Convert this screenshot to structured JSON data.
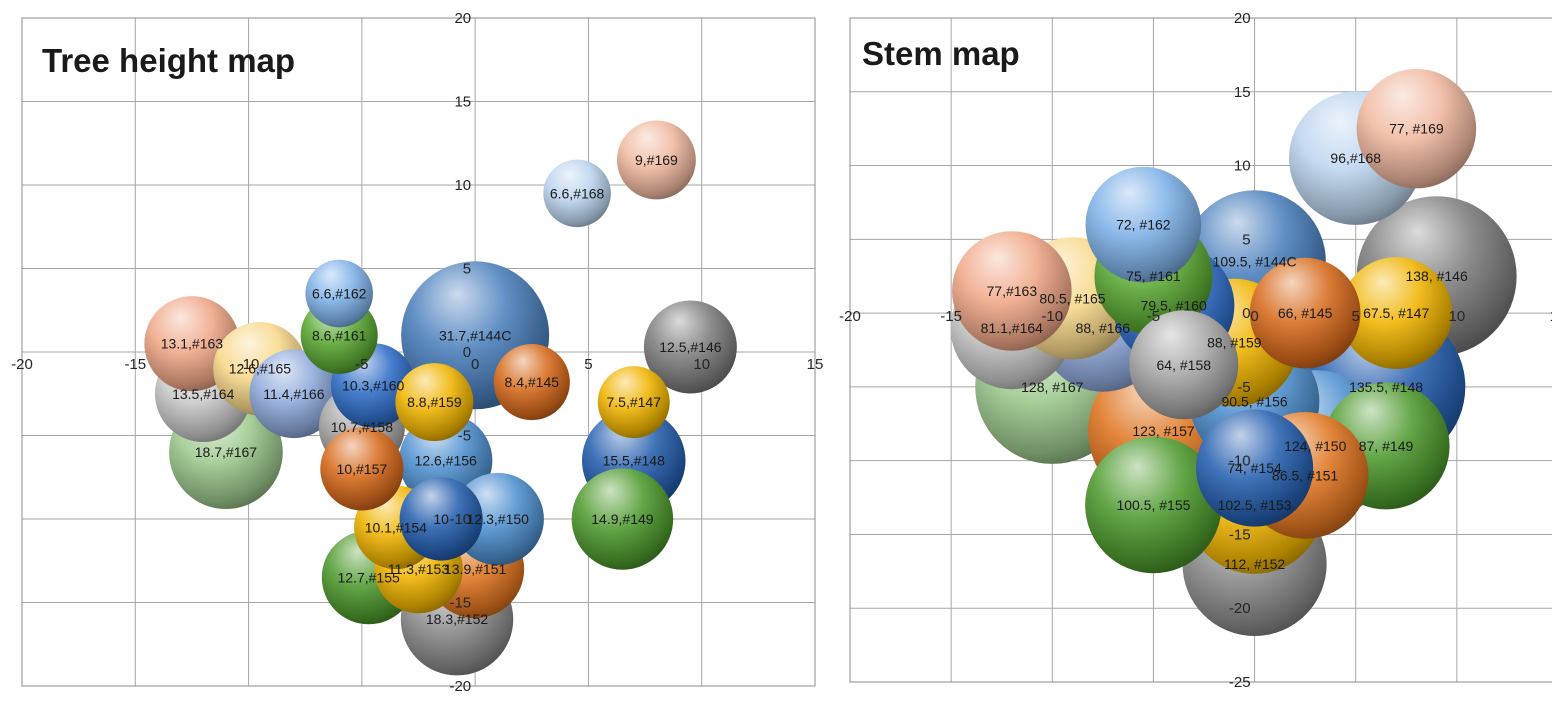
{
  "chart_data": [
    {
      "type": "bubble",
      "title": "Tree height map",
      "xlim": [
        -20,
        15
      ],
      "ylim": [
        -20,
        20
      ],
      "xticks": [
        -20,
        -15,
        -10,
        -5,
        0,
        5,
        10,
        15
      ],
      "yticks": [
        -20,
        -15,
        -10,
        -5,
        0,
        5,
        10,
        15,
        20
      ],
      "grid": true,
      "points": [
        {
          "label": "31.7,#144C",
          "x": 0,
          "y": 1,
          "size": 31.7,
          "color": "#4a80bd"
        },
        {
          "label": "10.3,#160",
          "x": -4.5,
          "y": -2,
          "size": 10.3,
          "color": "#2f6ec8"
        },
        {
          "label": "8.8,#159",
          "x": -1.8,
          "y": -3,
          "size": 8.8,
          "color": "#f0b400"
        },
        {
          "label": "8.4,#145",
          "x": 2.5,
          "y": -1.8,
          "size": 8.4,
          "color": "#d76a1c"
        },
        {
          "label": "12.6,#156",
          "x": -1.3,
          "y": -6.5,
          "size": 12.6,
          "color": "#4f91d0"
        },
        {
          "label": "10.7,#158",
          "x": -5,
          "y": -4.5,
          "size": 10.7,
          "color": "#a6a6a6"
        },
        {
          "label": "10,#157",
          "x": -5,
          "y": -7,
          "size": 10,
          "color": "#d76a1c"
        },
        {
          "label": "12.3,#150",
          "x": 1,
          "y": -10,
          "size": 12.3,
          "color": "#4f91d0"
        },
        {
          "label": "10",
          "x": -1.5,
          "y": -10,
          "size": 10,
          "color": "#2660b0"
        },
        {
          "label": "10.1,#154",
          "x": -3.5,
          "y": -10.5,
          "size": 10.1,
          "color": "#f0b400"
        },
        {
          "label": "13.9,#151",
          "x": 0,
          "y": -13,
          "size": 13.9,
          "color": "#e07520"
        },
        {
          "label": "11.3,#153",
          "x": -2.5,
          "y": -13,
          "size": 11.3,
          "color": "#f0b400"
        },
        {
          "label": "12.7,#155",
          "x": -4.7,
          "y": -13.5,
          "size": 12.7,
          "color": "#4e9a2e"
        },
        {
          "label": "18.3,#152",
          "x": -0.8,
          "y": -16,
          "size": 18.3,
          "color": "#8c8c8c"
        },
        {
          "label": "6.6,#168",
          "x": 4.5,
          "y": 9.5,
          "size": 6.6,
          "color": "#bcd4ef"
        },
        {
          "label": "9,#169",
          "x": 8,
          "y": 11.5,
          "size": 9,
          "color": "#f0b8a0"
        },
        {
          "label": "12.5,#146",
          "x": 9.5,
          "y": 0.3,
          "size": 12.5,
          "color": "#7f7f7f"
        },
        {
          "label": "7.5,#147",
          "x": 7,
          "y": -3,
          "size": 7.5,
          "color": "#f0b400"
        },
        {
          "label": "15.5,#148",
          "x": 7,
          "y": -6.5,
          "size": 15.5,
          "color": "#2660b0"
        },
        {
          "label": "14.9,#149",
          "x": 6.5,
          "y": -10,
          "size": 14.9,
          "color": "#4e9a2e"
        },
        {
          "label": "6.6,#162",
          "x": -6,
          "y": 3.5,
          "size": 6.6,
          "color": "#7fb2e8"
        },
        {
          "label": "8.6,#161",
          "x": -6,
          "y": 1,
          "size": 8.6,
          "color": "#5aa832"
        },
        {
          "label": "13.1,#163",
          "x": -12.5,
          "y": 0.5,
          "size": 13.1,
          "color": "#f0a888"
        },
        {
          "label": "12.6,#165",
          "x": -9.5,
          "y": -1,
          "size": 12.6,
          "color": "#f8d88a"
        },
        {
          "label": "13.5,#164",
          "x": -12,
          "y": -2.5,
          "size": 13.5,
          "color": "#c8c8c8"
        },
        {
          "label": "11.4,#166",
          "x": -8,
          "y": -2.5,
          "size": 11.4,
          "color": "#8faadc"
        },
        {
          "label": "18.7,#167",
          "x": -11,
          "y": -6,
          "size": 18.7,
          "color": "#9cc88c"
        }
      ]
    },
    {
      "type": "bubble",
      "title": "Stem map",
      "xlim": [
        -20,
        15
      ],
      "ylim": [
        -25,
        20
      ],
      "xticks": [
        -20,
        -15,
        -10,
        -5,
        0,
        5,
        10,
        15
      ],
      "yticks": [
        -25,
        -20,
        -15,
        -10,
        -5,
        0,
        5,
        10,
        15,
        20
      ],
      "grid": true,
      "points": [
        {
          "label": "109.5, #144C",
          "x": 0,
          "y": 3.5,
          "size": 109.5,
          "color": "#4a80bd"
        },
        {
          "label": "79.5, #160",
          "x": -4,
          "y": 0.5,
          "size": 79.5,
          "color": "#2f6ec8"
        },
        {
          "label": "88, #159",
          "x": -1,
          "y": -2,
          "size": 88,
          "color": "#f0b400"
        },
        {
          "label": "66, #145",
          "x": 2.5,
          "y": 0,
          "size": 66,
          "color": "#d76a1c"
        },
        {
          "label": "64, #158",
          "x": -3.5,
          "y": -3.5,
          "size": 64,
          "color": "#a6a6a6"
        },
        {
          "label": "90.5, #156",
          "x": 0,
          "y": -6,
          "size": 90.5,
          "color": "#4f91d0"
        },
        {
          "label": "123, #157",
          "x": -4.5,
          "y": -8,
          "size": 123,
          "color": "#e07520"
        },
        {
          "label": "124, #150",
          "x": 3,
          "y": -9,
          "size": 124,
          "color": "#4f91d0"
        },
        {
          "label": "74, #154",
          "x": 0,
          "y": -10.5,
          "size": 74,
          "color": "#2660b0"
        },
        {
          "label": "86.5, #151",
          "x": 2.5,
          "y": -11,
          "size": 86.5,
          "color": "#e07520"
        },
        {
          "label": "102.5, #153",
          "x": 0,
          "y": -13,
          "size": 102.5,
          "color": "#f0b400"
        },
        {
          "label": "100.5, #155",
          "x": -5,
          "y": -13,
          "size": 100.5,
          "color": "#4e9a2e"
        },
        {
          "label": "112, #152",
          "x": 0,
          "y": -17,
          "size": 112,
          "color": "#8c8c8c"
        },
        {
          "label": "96,#168",
          "x": 5,
          "y": 10.5,
          "size": 96,
          "color": "#bcd4ef"
        },
        {
          "label": "77, #169",
          "x": 8,
          "y": 12.5,
          "size": 77,
          "color": "#f0b8a0"
        },
        {
          "label": "138, #146",
          "x": 9,
          "y": 2.5,
          "size": 138,
          "color": "#7f7f7f"
        },
        {
          "label": "67.5, #147",
          "x": 7,
          "y": 0,
          "size": 67.5,
          "color": "#f0b400"
        },
        {
          "label": "135.5, #148",
          "x": 6.5,
          "y": -5,
          "size": 135.5,
          "color": "#2660b0"
        },
        {
          "label": "87, #149",
          "x": 6.5,
          "y": -9,
          "size": 87,
          "color": "#4e9a2e"
        },
        {
          "label": "72, #162",
          "x": -5.5,
          "y": 6,
          "size": 72,
          "color": "#7fb2e8"
        },
        {
          "label": "75, #161",
          "x": -5,
          "y": 2.5,
          "size": 75,
          "color": "#5aa832"
        },
        {
          "label": "77,#163",
          "x": -12,
          "y": 1.5,
          "size": 77,
          "color": "#f0a888"
        },
        {
          "label": "80.5, #165",
          "x": -9,
          "y": 1,
          "size": 80.5,
          "color": "#f8d88a"
        },
        {
          "label": "81.1,#164",
          "x": -12,
          "y": -1,
          "size": 81.1,
          "color": "#c8c8c8"
        },
        {
          "label": "88, #166",
          "x": -7.5,
          "y": -1,
          "size": 88,
          "color": "#8faadc"
        },
        {
          "label": "128, #167",
          "x": -10,
          "y": -5,
          "size": 128,
          "color": "#9cc88c"
        }
      ]
    }
  ]
}
